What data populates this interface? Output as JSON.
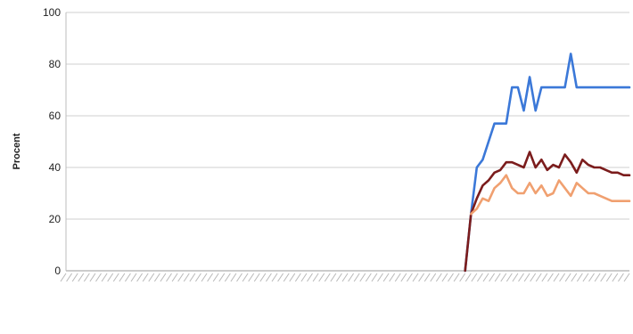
{
  "chart_data": {
    "type": "line",
    "title": "",
    "xlabel": "",
    "ylabel": "Procent",
    "ylim": [
      0,
      100
    ],
    "yticks": [
      0,
      20,
      40,
      60,
      80,
      100
    ],
    "grid": true,
    "legend": "none",
    "x": [
      1,
      2,
      3,
      4,
      5,
      6,
      7,
      8,
      9,
      10,
      11,
      12,
      13,
      14,
      15,
      16,
      17,
      18,
      19,
      20,
      21,
      22,
      23,
      24,
      25,
      26,
      27,
      28,
      29,
      30,
      31,
      32,
      33,
      34,
      35,
      36,
      37,
      38,
      39,
      40,
      41,
      42,
      43,
      44,
      45,
      46,
      47,
      48,
      49,
      50,
      51,
      52,
      53,
      54,
      55,
      56,
      57,
      58,
      59,
      60,
      61,
      62,
      63,
      64,
      65,
      66,
      67,
      68,
      69,
      70,
      71,
      72,
      73,
      74,
      75,
      76,
      77,
      78,
      79,
      80,
      81,
      82,
      83,
      84,
      85,
      86,
      87,
      88,
      89,
      90,
      91,
      92,
      93,
      94,
      95,
      96,
      97
    ],
    "series": [
      {
        "color": "#3b78d8",
        "values": [
          null,
          null,
          null,
          null,
          null,
          null,
          null,
          null,
          null,
          null,
          null,
          null,
          null,
          null,
          null,
          null,
          null,
          null,
          null,
          null,
          null,
          null,
          null,
          null,
          null,
          null,
          null,
          null,
          null,
          null,
          null,
          null,
          null,
          null,
          null,
          null,
          null,
          null,
          null,
          null,
          null,
          null,
          null,
          null,
          null,
          null,
          null,
          null,
          null,
          null,
          null,
          null,
          null,
          null,
          null,
          null,
          null,
          null,
          null,
          null,
          null,
          null,
          null,
          null,
          null,
          null,
          null,
          null,
          0,
          22,
          40,
          43,
          50,
          57,
          57,
          57,
          71,
          71,
          62,
          75,
          62,
          71,
          71,
          71,
          71,
          71,
          84,
          71,
          71,
          71,
          71,
          71,
          71,
          71,
          71,
          71,
          71
        ]
      },
      {
        "color": "#7b1c1c",
        "values": [
          null,
          null,
          null,
          null,
          null,
          null,
          null,
          null,
          null,
          null,
          null,
          null,
          null,
          null,
          null,
          null,
          null,
          null,
          null,
          null,
          null,
          null,
          null,
          null,
          null,
          null,
          null,
          null,
          null,
          null,
          null,
          null,
          null,
          null,
          null,
          null,
          null,
          null,
          null,
          null,
          null,
          null,
          null,
          null,
          null,
          null,
          null,
          null,
          null,
          null,
          null,
          null,
          null,
          null,
          null,
          null,
          null,
          null,
          null,
          null,
          null,
          null,
          null,
          null,
          null,
          null,
          null,
          null,
          0,
          22,
          28,
          33,
          35,
          38,
          39,
          42,
          42,
          41,
          40,
          46,
          40,
          43,
          39,
          41,
          40,
          45,
          42,
          38,
          43,
          41,
          40,
          40,
          39,
          38,
          38,
          37,
          37
        ]
      },
      {
        "color": "#f0a070",
        "values": [
          null,
          null,
          null,
          null,
          null,
          null,
          null,
          null,
          null,
          null,
          null,
          null,
          null,
          null,
          null,
          null,
          null,
          null,
          null,
          null,
          null,
          null,
          null,
          null,
          null,
          null,
          null,
          null,
          null,
          null,
          null,
          null,
          null,
          null,
          null,
          null,
          null,
          null,
          null,
          null,
          null,
          null,
          null,
          null,
          null,
          null,
          null,
          null,
          null,
          null,
          null,
          null,
          null,
          null,
          null,
          null,
          null,
          null,
          null,
          null,
          null,
          null,
          null,
          null,
          null,
          null,
          null,
          null,
          null,
          22,
          24,
          28,
          27,
          32,
          34,
          37,
          32,
          30,
          30,
          34,
          30,
          33,
          29,
          30,
          35,
          32,
          29,
          34,
          32,
          30,
          30,
          29,
          28,
          27,
          27,
          27,
          27
        ]
      }
    ]
  }
}
